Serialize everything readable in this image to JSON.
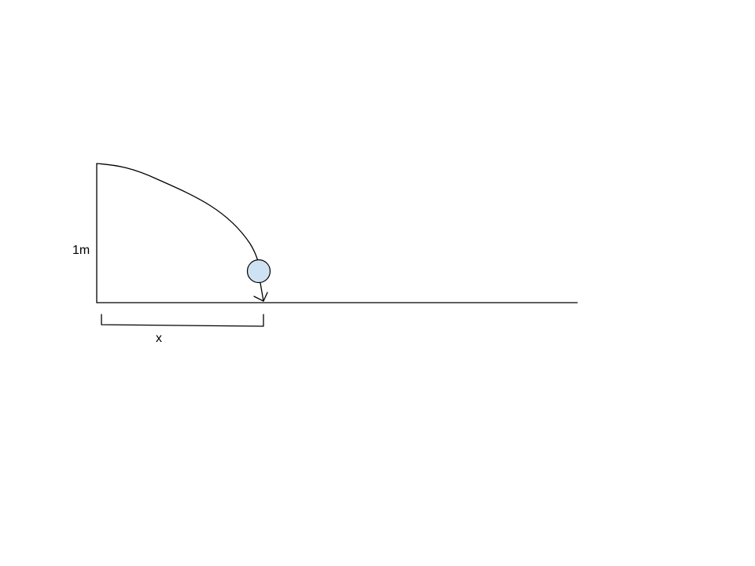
{
  "diagram": {
    "height_label": "1m",
    "distance_label": "x",
    "colors": {
      "line": "#000000",
      "ball_fill": "#cfe2f3",
      "ball_stroke": "#000000",
      "background": "#ffffff"
    }
  }
}
